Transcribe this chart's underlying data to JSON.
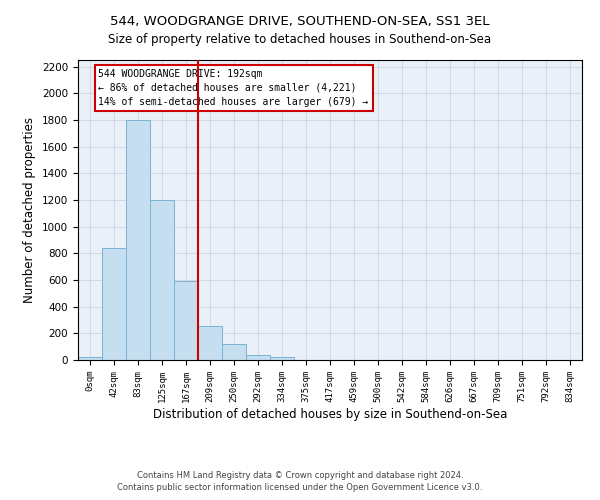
{
  "title": "544, WOODGRANGE DRIVE, SOUTHEND-ON-SEA, SS1 3EL",
  "subtitle": "Size of property relative to detached houses in Southend-on-Sea",
  "xlabel": "Distribution of detached houses by size in Southend-on-Sea",
  "ylabel": "Number of detached properties",
  "footnote1": "Contains HM Land Registry data © Crown copyright and database right 2024.",
  "footnote2": "Contains public sector information licensed under the Open Government Licence v3.0.",
  "bar_labels": [
    "0sqm",
    "42sqm",
    "83sqm",
    "125sqm",
    "167sqm",
    "209sqm",
    "250sqm",
    "292sqm",
    "334sqm",
    "375sqm",
    "417sqm",
    "459sqm",
    "500sqm",
    "542sqm",
    "584sqm",
    "626sqm",
    "667sqm",
    "709sqm",
    "751sqm",
    "792sqm",
    "834sqm"
  ],
  "bar_values": [
    25,
    840,
    1800,
    1200,
    590,
    255,
    120,
    40,
    20,
    0,
    0,
    0,
    0,
    0,
    0,
    0,
    0,
    0,
    0,
    0,
    0
  ],
  "bar_color": "#c5dff0",
  "bar_edgecolor": "#7ab3d4",
  "background_color": "#ffffff",
  "plot_bg_color": "#eaf0f8",
  "grid_color": "#c8d0dc",
  "vline_x": 4.5,
  "vline_color": "#cc0000",
  "annotation_line1": "544 WOODGRANGE DRIVE: 192sqm",
  "annotation_line2": "← 86% of detached houses are smaller (4,221)",
  "annotation_line3": "14% of semi-detached houses are larger (679) →",
  "annotation_box_color": "#ffffff",
  "annotation_box_edgecolor": "#cc0000",
  "ylim": [
    0,
    2250
  ],
  "yticks": [
    0,
    200,
    400,
    600,
    800,
    1000,
    1200,
    1400,
    1600,
    1800,
    2000,
    2200
  ]
}
